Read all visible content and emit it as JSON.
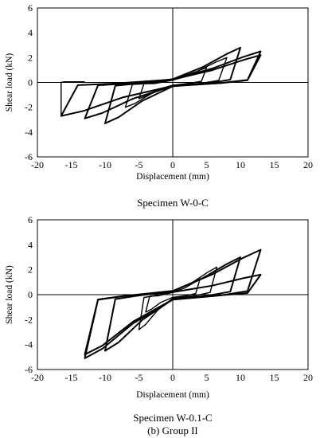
{
  "chart_data": [
    {
      "type": "line",
      "caption": "Specimen W-0-C",
      "xlabel": "Displacement (mm)",
      "ylabel": "Shear load (kN)",
      "xlim": [
        -20,
        20
      ],
      "ylim": [
        -6,
        6
      ],
      "xticks": [
        -20,
        -15,
        -10,
        -5,
        0,
        5,
        10,
        15,
        20
      ],
      "yticks": [
        -6,
        -4,
        -2,
        0,
        2,
        4,
        6
      ],
      "grid": false,
      "loops": [
        {
          "peak_pos": [
            5.0,
            1.2
          ],
          "peak_neg": [
            -5.0,
            -1.3
          ]
        },
        {
          "peak_pos": [
            8.0,
            2.0
          ],
          "peak_neg": [
            -7.0,
            -2.0
          ]
        },
        {
          "peak_pos": [
            10.0,
            2.8
          ],
          "peak_neg": [
            -10.0,
            -3.3
          ]
        },
        {
          "peak_pos": [
            13.0,
            2.5
          ],
          "peak_neg": [
            -13.0,
            -2.9
          ]
        },
        {
          "peak_pos": [
            13.0,
            2.2
          ],
          "peak_neg": [
            -16.5,
            -2.7
          ]
        }
      ],
      "final_segment": {
        "x": [
          -16.5,
          -16.5,
          -16.0,
          -14.5,
          -13.0
        ],
        "y": [
          -2.7,
          0.0,
          0.05,
          0.05,
          0.05
        ]
      }
    },
    {
      "type": "line",
      "caption": "Specimen W-0.1-C",
      "subcaption": "(b) Group II",
      "xlabel": "Displacement (mm)",
      "ylabel": "Shear load (kN)",
      "xlim": [
        -20,
        20
      ],
      "ylim": [
        -6,
        6
      ],
      "xticks": [
        -20,
        -15,
        -10,
        -5,
        0,
        5,
        10,
        15,
        20
      ],
      "yticks": [
        -6,
        -4,
        -2,
        0,
        2,
        4,
        6
      ],
      "grid": false,
      "loops": [
        {
          "peak_pos": [
            4.0,
            1.2
          ],
          "peak_neg": [
            -4.0,
            -1.4
          ]
        },
        {
          "peak_pos": [
            6.5,
            2.2
          ],
          "peak_neg": [
            -5.0,
            -2.8
          ]
        },
        {
          "peak_pos": [
            10.0,
            3.0
          ],
          "peak_neg": [
            -10.0,
            -4.5
          ]
        },
        {
          "peak_pos": [
            13.0,
            3.6
          ],
          "peak_neg": [
            -13.0,
            -5.1
          ]
        },
        {
          "peak_pos": [
            13.0,
            1.6
          ],
          "peak_neg": [
            -13.0,
            -4.8
          ]
        }
      ]
    }
  ]
}
